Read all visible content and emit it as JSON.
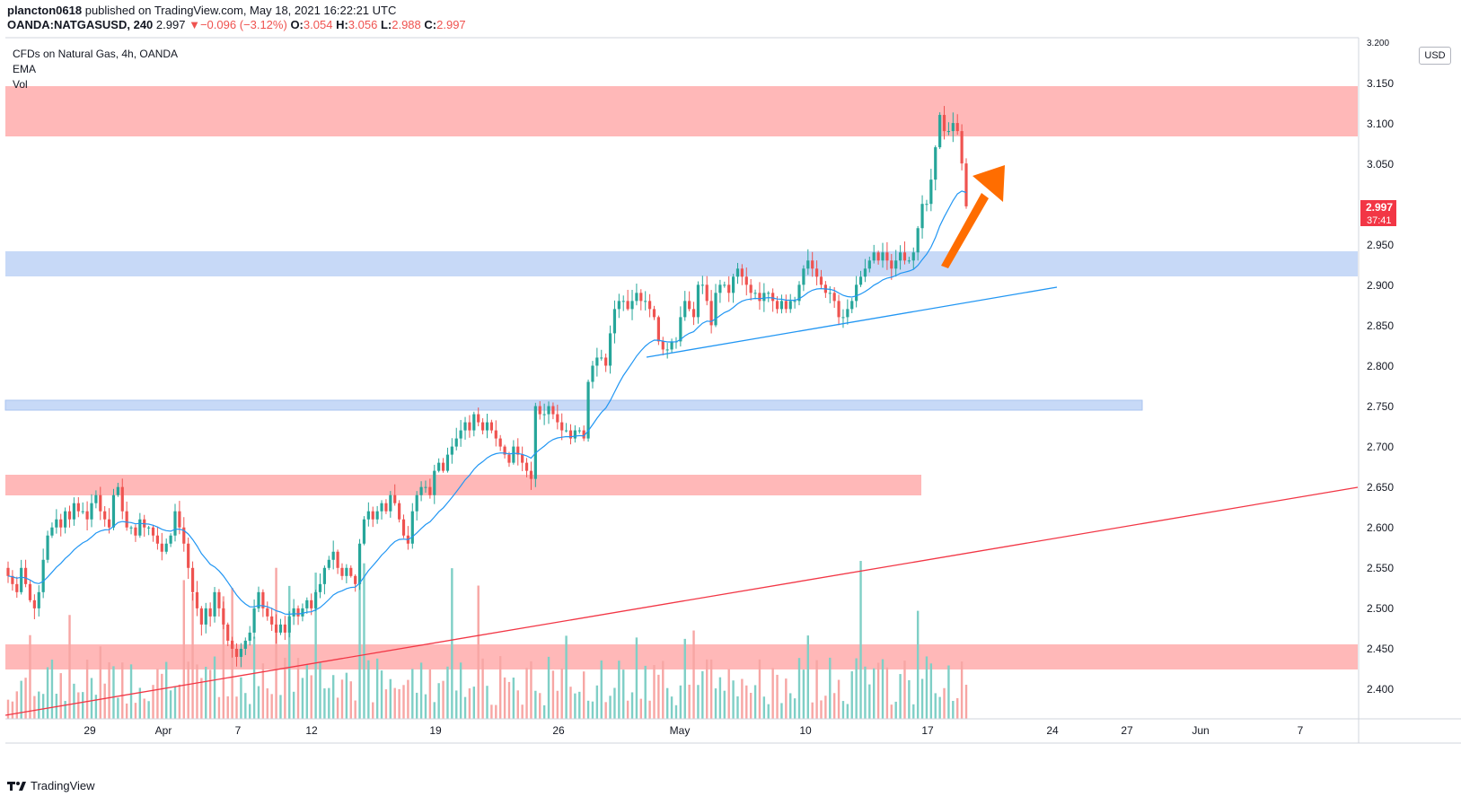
{
  "header": {
    "user": "plancton0618",
    "published_text": "published on TradingView.com, May 18, 2021 16:22:21 UTC",
    "symbol": "OANDA:NATGASUSD, 240",
    "last": "2.997",
    "change": "−0.096 (−3.12%)",
    "o_label": "O:",
    "o": "3.054",
    "h_label": "H:",
    "h": "3.056",
    "l_label": "L:",
    "l": "2.988",
    "c_label": "C:",
    "c": "2.997"
  },
  "legend": {
    "title": "CFDs on Natural Gas, 4h, OANDA",
    "ema": "EMA",
    "vol": "Vol"
  },
  "price_axis": {
    "currency": "USD",
    "ticks": [
      "3.200",
      "3.150",
      "3.100",
      "3.050",
      "2.950",
      "2.900",
      "2.850",
      "2.800",
      "2.750",
      "2.700",
      "2.650",
      "2.600",
      "2.550",
      "2.500",
      "2.450",
      "2.400"
    ],
    "last_price": "2.997",
    "countdown": "37:41"
  },
  "time_axis": {
    "ticks": [
      "29",
      "Apr",
      "7",
      "12",
      "19",
      "26",
      "May",
      "10",
      "17",
      "24",
      "27",
      "Jun",
      "7"
    ]
  },
  "footer": {
    "brand": "TradingView"
  },
  "colors": {
    "up": "#26a69a",
    "down": "#ef5350",
    "ema": "#2196f3",
    "red_zone": "#ffb8b8",
    "blue_zone": "#c7d9f7",
    "arrow": "#ff6d00",
    "trend_red": "#f23645",
    "trend_blue": "#2196f3"
  },
  "chart_data": {
    "type": "candlestick",
    "title": "CFDs on Natural Gas, 4h, OANDA",
    "ylim": [
      2.36,
      3.21
    ],
    "close_series": [
      2.54,
      2.53,
      2.52,
      2.55,
      2.53,
      2.51,
      2.5,
      2.52,
      2.56,
      2.59,
      2.6,
      2.61,
      2.6,
      2.62,
      2.61,
      2.63,
      2.62,
      2.62,
      2.61,
      2.63,
      2.64,
      2.62,
      2.61,
      2.6,
      2.64,
      2.65,
      2.62,
      2.6,
      2.6,
      2.59,
      2.61,
      2.6,
      2.6,
      2.59,
      2.58,
      2.57,
      2.58,
      2.59,
      2.62,
      2.6,
      2.58,
      2.55,
      2.52,
      2.5,
      2.48,
      2.5,
      2.49,
      2.52,
      2.5,
      2.48,
      2.46,
      2.45,
      2.44,
      2.45,
      2.46,
      2.47,
      2.5,
      2.52,
      2.5,
      2.49,
      2.48,
      2.47,
      2.48,
      2.47,
      2.49,
      2.5,
      2.49,
      2.5,
      2.51,
      2.5,
      2.52,
      2.53,
      2.55,
      2.56,
      2.57,
      2.55,
      2.54,
      2.55,
      2.54,
      2.53,
      2.58,
      2.61,
      2.62,
      2.61,
      2.62,
      2.63,
      2.62,
      2.64,
      2.63,
      2.61,
      2.59,
      2.58,
      2.62,
      2.64,
      2.65,
      2.65,
      2.64,
      2.67,
      2.68,
      2.67,
      2.69,
      2.7,
      2.71,
      2.72,
      2.73,
      2.72,
      2.74,
      2.73,
      2.72,
      2.73,
      2.72,
      2.71,
      2.7,
      2.69,
      2.68,
      2.7,
      2.69,
      2.68,
      2.67,
      2.66,
      2.75,
      2.74,
      2.74,
      2.75,
      2.74,
      2.73,
      2.72,
      2.72,
      2.71,
      2.72,
      2.72,
      2.71,
      2.78,
      2.8,
      2.81,
      2.81,
      2.8,
      2.84,
      2.87,
      2.88,
      2.88,
      2.87,
      2.88,
      2.89,
      2.88,
      2.88,
      2.87,
      2.86,
      2.83,
      2.82,
      2.82,
      2.83,
      2.83,
      2.86,
      2.88,
      2.87,
      2.86,
      2.9,
      2.9,
      2.88,
      2.85,
      2.89,
      2.9,
      2.9,
      2.89,
      2.91,
      2.92,
      2.91,
      2.9,
      2.89,
      2.89,
      2.88,
      2.89,
      2.89,
      2.88,
      2.87,
      2.88,
      2.87,
      2.88,
      2.88,
      2.9,
      2.92,
      2.93,
      2.92,
      2.91,
      2.9,
      2.89,
      2.89,
      2.88,
      2.86,
      2.86,
      2.87,
      2.88,
      2.9,
      2.91,
      2.92,
      2.93,
      2.94,
      2.93,
      2.94,
      2.93,
      2.92,
      2.93,
      2.94,
      2.93,
      2.93,
      2.94,
      2.97,
      3.0,
      3.0,
      3.03,
      3.07,
      3.11,
      3.09,
      3.09,
      3.1,
      3.09,
      3.05,
      2.997
    ],
    "hlines": [
      {
        "name": "upper-red-zone",
        "from": 3.085,
        "to": 3.147
      },
      {
        "name": "blue-zone-upper",
        "from": 2.912,
        "to": 2.943
      },
      {
        "name": "blue-zone-lower",
        "from": 2.745,
        "to": 2.757
      },
      {
        "name": "middle-red-zone",
        "from": 2.64,
        "to": 2.665
      },
      {
        "name": "lower-red-zone",
        "from": 2.425,
        "to": 2.455
      }
    ],
    "last_price": 2.997
  }
}
